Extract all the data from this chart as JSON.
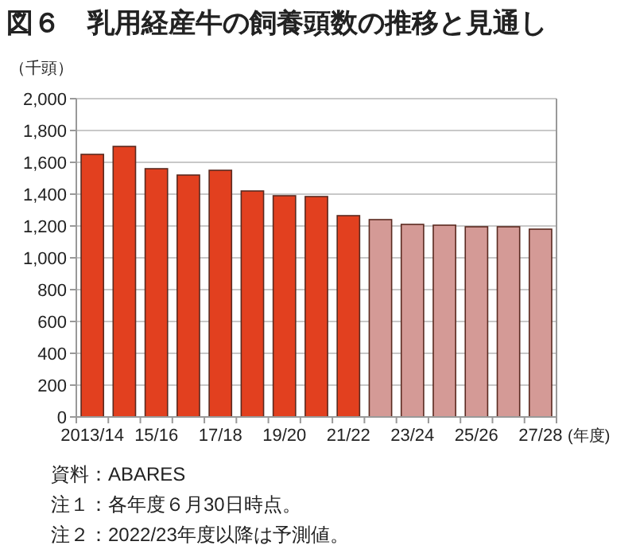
{
  "chart_data": {
    "type": "bar",
    "title": "図６　乳用経産牛の飼養頭数の推移と見通し",
    "ylabel": "（千頭）",
    "xlabel": "(年度)",
    "categories": [
      "2013/14",
      null,
      "15/16",
      null,
      "17/18",
      null,
      "19/20",
      null,
      "21/22",
      null,
      "23/24",
      null,
      "25/26",
      null,
      "27/28"
    ],
    "values": [
      1650,
      1700,
      1560,
      1520,
      1550,
      1420,
      1390,
      1385,
      1265,
      1240,
      1210,
      1205,
      1195,
      1195,
      1180
    ],
    "colors": [
      "#e2401f",
      "#e2401f",
      "#e2401f",
      "#e2401f",
      "#e2401f",
      "#e2401f",
      "#e2401f",
      "#e2401f",
      "#e2401f",
      "#d49a96",
      "#d49a96",
      "#d49a96",
      "#d49a96",
      "#d49a96",
      "#d49a96"
    ],
    "ylim": [
      0,
      2000
    ],
    "yticks": [
      {
        "value": 0,
        "label": "0"
      },
      {
        "value": 200,
        "label": "200"
      },
      {
        "value": 400,
        "label": "400"
      },
      {
        "value": 600,
        "label": "600"
      },
      {
        "value": 800,
        "label": "800"
      },
      {
        "value": 1000,
        "label": "1,000"
      },
      {
        "value": 1200,
        "label": "1,200"
      },
      {
        "value": 1400,
        "label": "1,400"
      },
      {
        "value": 1600,
        "label": "1,600"
      },
      {
        "value": 1800,
        "label": "1,800"
      },
      {
        "value": 2000,
        "label": "2,000"
      }
    ],
    "grid": "y",
    "annotations": [
      "資料：ABARES",
      "注１：各年度６月30日時点。",
      "注２：2022/23年度以降は予測値。"
    ]
  }
}
